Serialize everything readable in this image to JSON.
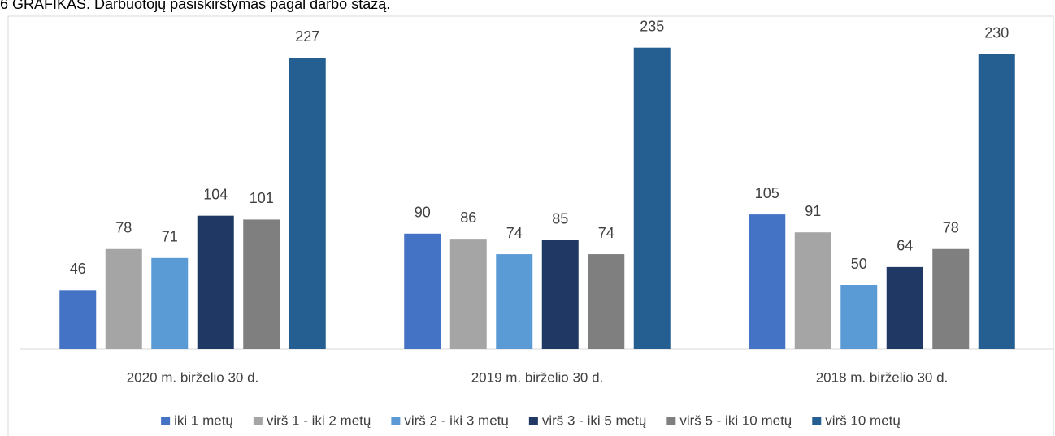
{
  "chart_data": {
    "type": "bar",
    "title": "6 GRAFIKAS. Darbuotojų pasiskirstymas pagal darbo stažą.",
    "categories": [
      "2020 m. birželio 30 d.",
      "2019 m. birželio 30 d.",
      "2018 m. birželio 30 d."
    ],
    "series": [
      {
        "name": "iki 1 metų",
        "color": "#4472c4",
        "values": [
          46,
          90,
          105
        ]
      },
      {
        "name": "virš 1 - iki 2 metų",
        "color": "#a5a5a5",
        "values": [
          78,
          86,
          91
        ]
      },
      {
        "name": "virš 2 - iki 3 metų",
        "color": "#5b9bd5",
        "values": [
          71,
          74,
          50
        ]
      },
      {
        "name": "virš 3 - iki 5 metų",
        "color": "#203864",
        "values": [
          104,
          85,
          64
        ]
      },
      {
        "name": "virš 5 - iki 10 metų",
        "color": "#7f7f7f",
        "values": [
          101,
          74,
          78
        ]
      },
      {
        "name": "virš 10 metų",
        "color": "#255e91",
        "values": [
          227,
          235,
          230
        ]
      }
    ],
    "ylim": [
      0,
      250
    ],
    "legend": "bottom"
  }
}
